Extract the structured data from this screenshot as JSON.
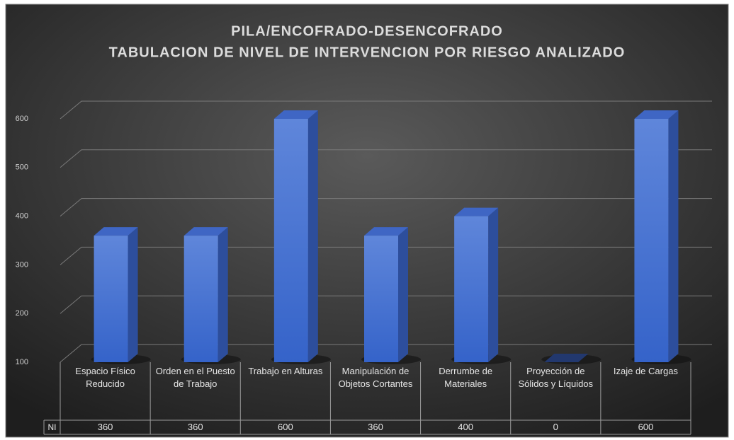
{
  "chart_data": {
    "type": "bar3d",
    "title": "PILA/ENCOFRADO-DESENCOFRADO",
    "subtitle": "TABULACION DE NIVEL DE INTERVENCION POR RIESGO ANALIZADO",
    "categories": [
      "Espacio Físico Reducido",
      "Orden en el Puesto de Trabajo",
      "Trabajo en Alturas",
      "Manipulación de Objetos Cortantes",
      "Derrumbe de Materiales",
      "Proyección de Sólidos y Líquidos",
      "Izaje de Cargas"
    ],
    "series": [
      {
        "name": "NI",
        "color": "#4a74d4",
        "values": [
          360,
          360,
          600,
          360,
          400,
          0,
          600
        ]
      }
    ],
    "ylim": [
      100,
      600
    ],
    "yticks": [
      100,
      200,
      300,
      400,
      500,
      600
    ],
    "grid": true
  }
}
